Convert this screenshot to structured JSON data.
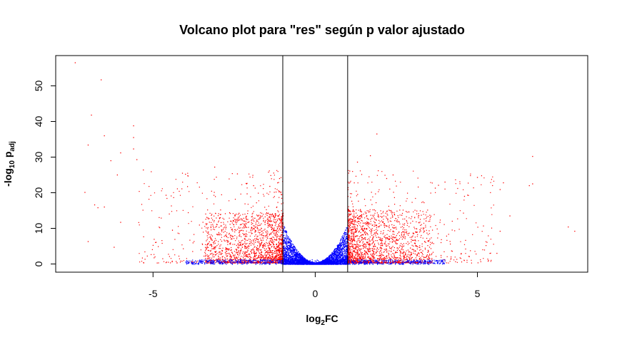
{
  "chart_data": {
    "type": "scatter",
    "title": "Volcano plot para \"res\" según p valor ajustado",
    "xlabel": {
      "base": "log",
      "sub": "2",
      "rest": "FC"
    },
    "ylabel": {
      "prefix": "-log",
      "sub": "10",
      "mid": " p",
      "sub2": "adj"
    },
    "xlim": [
      -8.0,
      8.4
    ],
    "ylim": [
      -2.3,
      58.5
    ],
    "x_ticks": [
      -5,
      0,
      5
    ],
    "y_ticks": [
      0,
      10,
      20,
      30,
      40,
      50
    ],
    "vlines": [
      -1,
      1
    ],
    "grid": false,
    "legend": "none",
    "colors": {
      "significant": "#ff0000",
      "not_significant": "#0000ff",
      "frame": "#000000"
    },
    "series": [
      {
        "color": "#ff0000",
        "points": [
          [
            -7.4,
            56.5
          ],
          [
            -6.6,
            51.7
          ],
          [
            -6.9,
            41.8
          ],
          [
            -6.5,
            36.0
          ],
          [
            -7.0,
            33.4
          ],
          [
            -5.6,
            38.8
          ],
          [
            -5.6,
            35.5
          ],
          [
            -5.6,
            32.3
          ],
          [
            -6.0,
            31.2
          ],
          [
            -6.3,
            29.0
          ],
          [
            -5.5,
            29.3
          ],
          [
            -6.1,
            25.0
          ],
          [
            -5.3,
            26.4
          ],
          [
            -4.0,
            25.2
          ],
          [
            -3.1,
            27.2
          ],
          [
            -6.5,
            16.0
          ],
          [
            -6.7,
            15.8
          ],
          [
            -7.1,
            20.1
          ],
          [
            -6.8,
            16.6
          ],
          [
            -7.0,
            6.3
          ],
          [
            -6.2,
            4.7
          ],
          [
            -6.0,
            11.7
          ],
          [
            -2.4,
            25.3
          ],
          [
            -1.1,
            24.0
          ],
          [
            -1.4,
            21.8
          ],
          [
            -1.9,
            22.0
          ],
          [
            -4.6,
            19.3
          ],
          [
            -2.1,
            19.7
          ],
          [
            6.7,
            30.2
          ],
          [
            6.7,
            22.5
          ],
          [
            6.6,
            22.0
          ],
          [
            5.8,
            22.8
          ],
          [
            5.0,
            24.3
          ],
          [
            5.7,
            20.9
          ],
          [
            7.8,
            10.4
          ],
          [
            8.0,
            9.2
          ],
          [
            6.0,
            13.5
          ],
          [
            5.7,
            9.2
          ],
          [
            5.6,
            3.0
          ],
          [
            1.9,
            36.5
          ],
          [
            1.7,
            30.4
          ],
          [
            1.3,
            28.6
          ],
          [
            2.4,
            25.0
          ],
          [
            2.2,
            24.0
          ],
          [
            3.8,
            22.1
          ],
          [
            3.7,
            21.3
          ],
          [
            4.6,
            19.0
          ],
          [
            4.0,
            23.0
          ]
        ]
      }
    ],
    "dense_clouds": [
      {
        "color": "#ff0000",
        "x_range": [
          -3.4,
          -1.0
        ],
        "y_max": 14,
        "count": 1700,
        "seed": 11
      },
      {
        "color": "#ff0000",
        "x_range": [
          1.0,
          3.6
        ],
        "y_max": 15,
        "count": 1700,
        "seed": 23
      },
      {
        "color": "#ff0000",
        "x_range": [
          -5.5,
          -1.0
        ],
        "y_max": 26,
        "count": 430,
        "seed": 37
      },
      {
        "color": "#ff0000",
        "x_range": [
          1.0,
          5.5
        ],
        "y_max": 26,
        "count": 430,
        "seed": 41
      },
      {
        "color": "#0000ff",
        "x_range": [
          -1.0,
          1.0
        ],
        "y_max": 12,
        "count": 3600,
        "seed": 53,
        "shape": "v"
      },
      {
        "color": "#0000ff",
        "x_range": [
          -4.0,
          4.0
        ],
        "y_max": 1.3,
        "count": 900,
        "seed": 61,
        "band": true
      }
    ]
  }
}
